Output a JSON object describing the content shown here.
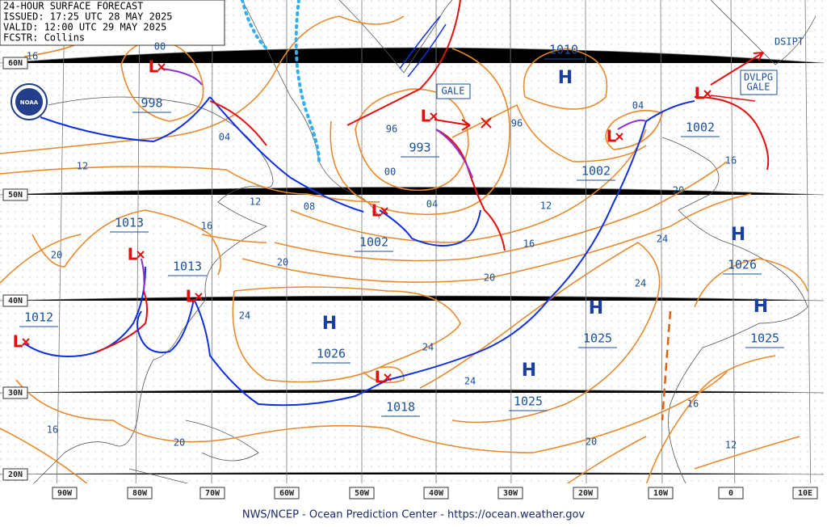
{
  "header": [
    "24-HOUR SURFACE FORECAST",
    "ISSUED: 17:25 UTC 28 MAY 2025",
    "VALID: 12:00 UTC 29 MAY 2025",
    "FCSTR:  Collins"
  ],
  "logo_text": "NOAA",
  "center_symbols": [
    "L",
    "L",
    "H",
    "L",
    "L",
    "L",
    "L",
    "L",
    "L",
    "L",
    "H",
    "H",
    "H",
    "H",
    "H"
  ],
  "central_pressures": [
    998,
    993,
    1010,
    1002,
    1002,
    1002,
    1013,
    1013,
    1012,
    1018,
    1026,
    1025,
    1025,
    1026,
    1025
  ],
  "isobar_labels": [
    "16",
    "00",
    "04",
    "12",
    "12",
    "08",
    "16",
    "20",
    "20",
    "24",
    "96",
    "00",
    "04",
    "96",
    "12",
    "16",
    "20",
    "24",
    "24",
    "04",
    "16",
    "20",
    "24",
    "24",
    "16",
    "12",
    "20",
    "20",
    "16"
  ],
  "warnings": [
    "GALE",
    "DVLPG",
    "GALE",
    "DSIPT"
  ],
  "latitude_labels": [
    "60N",
    "50N",
    "40N",
    "30N",
    "20N"
  ],
  "longitude_labels": [
    "90W",
    "80W",
    "70W",
    "60W",
    "50W",
    "40W",
    "30W",
    "20W",
    "10W",
    "0",
    "10E"
  ],
  "footer": "NWS/NCEP - Ocean Prediction Center - https://ocean.weather.gov"
}
